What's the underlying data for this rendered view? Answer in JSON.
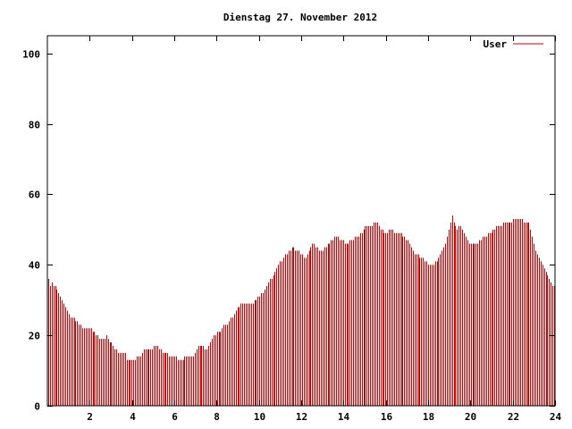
{
  "chart_data": {
    "type": "bar",
    "title": "Dienstag 27. November 2012",
    "xlabel": "",
    "ylabel": "",
    "xlim": [
      0,
      24
    ],
    "ylim": [
      0,
      105
    ],
    "x_ticks": [
      2,
      4,
      6,
      8,
      10,
      12,
      14,
      16,
      18,
      20,
      22,
      24
    ],
    "y_ticks": [
      0,
      20,
      40,
      60,
      80,
      100
    ],
    "grid": false,
    "legend": "top-right",
    "series": [
      {
        "name": "User",
        "color": "#cc0000",
        "values": [
          36,
          34,
          35,
          34,
          34,
          33,
          32,
          31,
          30,
          29,
          28,
          27,
          26,
          25,
          25,
          25,
          24,
          24,
          23,
          23,
          22,
          22,
          22,
          22,
          22,
          22,
          21,
          21,
          20,
          20,
          19,
          19,
          19,
          19,
          20,
          19,
          18,
          18,
          17,
          16,
          16,
          15,
          15,
          15,
          15,
          15,
          13,
          13,
          13,
          13,
          13,
          13,
          14,
          14,
          14,
          15,
          16,
          16,
          16,
          16,
          16,
          16,
          17,
          17,
          17,
          16,
          16,
          15,
          15,
          15,
          15,
          14,
          14,
          14,
          14,
          14,
          13,
          13,
          13,
          13,
          14,
          14,
          14,
          14,
          14,
          14,
          15,
          16,
          17,
          17,
          17,
          17,
          16,
          16,
          17,
          18,
          19,
          20,
          20,
          21,
          21,
          21,
          22,
          23,
          23,
          23,
          24,
          25,
          25,
          26,
          27,
          28,
          28,
          29,
          29,
          29,
          29,
          29,
          29,
          29,
          29,
          30,
          30,
          31,
          31,
          32,
          32,
          33,
          34,
          35,
          36,
          36,
          37,
          38,
          39,
          40,
          41,
          41,
          42,
          43,
          43,
          44,
          44,
          45,
          45,
          44,
          44,
          44,
          43,
          43,
          42,
          42,
          43,
          44,
          45,
          46,
          46,
          45,
          45,
          44,
          44,
          44,
          45,
          45,
          46,
          46,
          47,
          47,
          48,
          48,
          48,
          47,
          47,
          47,
          46,
          46,
          46,
          47,
          47,
          47,
          48,
          48,
          48,
          49,
          49,
          50,
          51,
          51,
          51,
          51,
          51,
          52,
          52,
          52,
          51,
          50,
          50,
          49,
          49,
          49,
          50,
          50,
          50,
          49,
          49,
          49,
          49,
          49,
          48,
          48,
          47,
          47,
          46,
          45,
          44,
          43,
          43,
          43,
          42,
          42,
          42,
          41,
          41,
          40,
          40,
          40,
          40,
          41,
          41,
          42,
          43,
          44,
          45,
          46,
          48,
          50,
          52,
          54,
          52,
          51,
          50,
          51,
          51,
          50,
          49,
          48,
          47,
          46,
          46,
          46,
          46,
          46,
          46,
          47,
          47,
          48,
          48,
          48,
          49,
          49,
          49,
          50,
          50,
          51,
          51,
          51,
          51,
          52,
          52,
          52,
          52,
          52,
          52,
          53,
          53,
          53,
          53,
          53,
          53,
          52,
          52,
          52,
          52,
          50,
          48,
          46,
          44,
          43,
          42,
          41,
          40,
          39,
          38,
          37,
          36,
          35,
          34,
          34
        ]
      }
    ]
  }
}
